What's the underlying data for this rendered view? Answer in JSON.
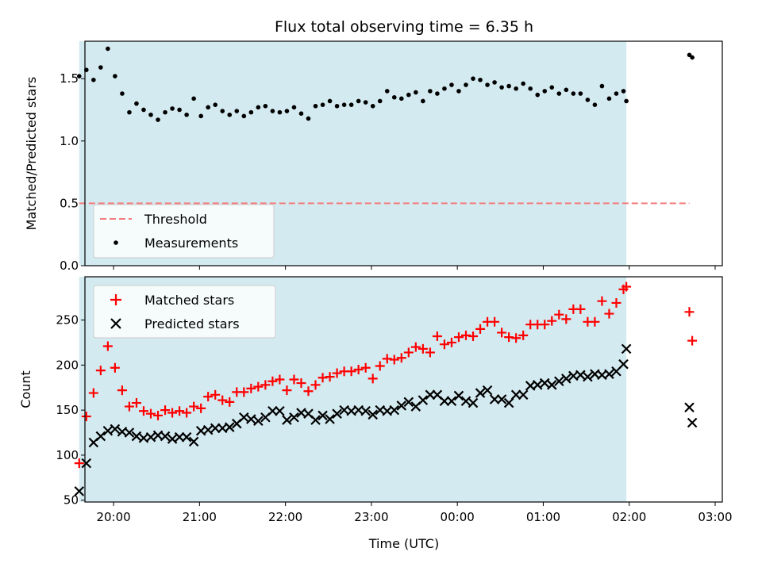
{
  "chart_data": [
    {
      "type": "scatter",
      "title": "Flux total observing time = 6.35 h",
      "xlabel": "",
      "ylabel": "Matched/Predicted stars",
      "x_range": [
        "19:40",
        "03:05"
      ],
      "ylim": [
        0,
        1.8
      ],
      "yticks": [
        0.0,
        0.5,
        1.0,
        1.5
      ],
      "ytick_labels": [
        "0.0",
        "0.5",
        "1.0",
        "1.5"
      ],
      "xticks": [
        "20:00",
        "21:00",
        "22:00",
        "23:00",
        "00:00",
        "01:00",
        "02:00",
        "03:00"
      ],
      "xtick_labels_visible": false,
      "shaded_interval": {
        "start": "19:36",
        "end": "01:58",
        "color": "#d3eaf0"
      },
      "threshold": {
        "name": "Threshold",
        "value": 0.5,
        "start": "19:36",
        "end": "02:42",
        "color": "#f47c7c",
        "style": "dashed"
      },
      "series": [
        {
          "name": "Measurements",
          "color": "#000000",
          "marker": "dot",
          "points": [
            [
              "19:36",
              1.52
            ],
            [
              "19:41",
              1.57
            ],
            [
              "19:46",
              1.49
            ],
            [
              "19:51",
              1.59
            ],
            [
              "19:56",
              1.74
            ],
            [
              "20:01",
              1.52
            ],
            [
              "20:06",
              1.38
            ],
            [
              "20:11",
              1.23
            ],
            [
              "20:16",
              1.3
            ],
            [
              "20:21",
              1.25
            ],
            [
              "20:26",
              1.21
            ],
            [
              "20:31",
              1.17
            ],
            [
              "20:36",
              1.23
            ],
            [
              "20:41",
              1.26
            ],
            [
              "20:46",
              1.25
            ],
            [
              "20:51",
              1.21
            ],
            [
              "20:56",
              1.34
            ],
            [
              "21:01",
              1.2
            ],
            [
              "21:06",
              1.27
            ],
            [
              "21:11",
              1.29
            ],
            [
              "21:16",
              1.24
            ],
            [
              "21:21",
              1.21
            ],
            [
              "21:26",
              1.24
            ],
            [
              "21:31",
              1.2
            ],
            [
              "21:36",
              1.23
            ],
            [
              "21:41",
              1.27
            ],
            [
              "21:46",
              1.28
            ],
            [
              "21:51",
              1.24
            ],
            [
              "21:56",
              1.23
            ],
            [
              "22:01",
              1.24
            ],
            [
              "22:06",
              1.27
            ],
            [
              "22:11",
              1.22
            ],
            [
              "22:16",
              1.18
            ],
            [
              "22:21",
              1.28
            ],
            [
              "22:26",
              1.29
            ],
            [
              "22:31",
              1.32
            ],
            [
              "22:36",
              1.28
            ],
            [
              "22:41",
              1.29
            ],
            [
              "22:46",
              1.29
            ],
            [
              "22:51",
              1.32
            ],
            [
              "22:56",
              1.31
            ],
            [
              "23:01",
              1.28
            ],
            [
              "23:06",
              1.32
            ],
            [
              "23:11",
              1.4
            ],
            [
              "23:16",
              1.35
            ],
            [
              "23:21",
              1.34
            ],
            [
              "23:26",
              1.37
            ],
            [
              "23:31",
              1.39
            ],
            [
              "23:36",
              1.32
            ],
            [
              "23:41",
              1.4
            ],
            [
              "23:46",
              1.38
            ],
            [
              "23:51",
              1.42
            ],
            [
              "23:56",
              1.45
            ],
            [
              "00:01",
              1.4
            ],
            [
              "00:06",
              1.45
            ],
            [
              "00:11",
              1.5
            ],
            [
              "00:16",
              1.49
            ],
            [
              "00:21",
              1.45
            ],
            [
              "00:26",
              1.47
            ],
            [
              "00:31",
              1.43
            ],
            [
              "00:36",
              1.44
            ],
            [
              "00:41",
              1.42
            ],
            [
              "00:46",
              1.46
            ],
            [
              "00:51",
              1.42
            ],
            [
              "00:56",
              1.37
            ],
            [
              "01:01",
              1.4
            ],
            [
              "01:06",
              1.43
            ],
            [
              "01:11",
              1.38
            ],
            [
              "01:16",
              1.41
            ],
            [
              "01:21",
              1.38
            ],
            [
              "01:26",
              1.38
            ],
            [
              "01:31",
              1.33
            ],
            [
              "01:36",
              1.29
            ],
            [
              "01:41",
              1.44
            ],
            [
              "01:46",
              1.34
            ],
            [
              "01:51",
              1.38
            ],
            [
              "01:56",
              1.4
            ],
            [
              "01:58",
              1.32
            ],
            [
              "02:42",
              1.69
            ],
            [
              "02:44",
              1.67
            ]
          ]
        }
      ],
      "legend": {
        "position": "lower-left",
        "entries": [
          "Threshold",
          "Measurements"
        ]
      }
    },
    {
      "type": "scatter",
      "title": "",
      "xlabel": "Time (UTC)",
      "ylabel": "Count",
      "x_range": [
        "19:40",
        "03:05"
      ],
      "ylim": [
        48,
        298
      ],
      "yticks": [
        50,
        100,
        150,
        200,
        250
      ],
      "ytick_labels": [
        "50",
        "100",
        "150",
        "200",
        "250"
      ],
      "xticks": [
        "20:00",
        "21:00",
        "22:00",
        "23:00",
        "00:00",
        "01:00",
        "02:00",
        "03:00"
      ],
      "xtick_labels": [
        "20:00",
        "21:00",
        "22:00",
        "23:00",
        "00:00",
        "01:00",
        "02:00",
        "03:00"
      ],
      "shaded_interval": {
        "start": "19:36",
        "end": "01:58",
        "color": "#d3eaf0"
      },
      "series": [
        {
          "name": "Matched stars",
          "color": "#ff0000",
          "marker": "plus",
          "points": [
            [
              "19:36",
              91
            ],
            [
              "19:41",
              143
            ],
            [
              "19:46",
              169
            ],
            [
              "19:51",
              194
            ],
            [
              "19:56",
              221
            ],
            [
              "20:01",
              197
            ],
            [
              "20:06",
              172
            ],
            [
              "20:11",
              154
            ],
            [
              "20:16",
              158
            ],
            [
              "20:21",
              149
            ],
            [
              "20:26",
              146
            ],
            [
              "20:31",
              144
            ],
            [
              "20:36",
              150
            ],
            [
              "20:41",
              147
            ],
            [
              "20:46",
              149
            ],
            [
              "20:51",
              147
            ],
            [
              "20:56",
              154
            ],
            [
              "21:01",
              152
            ],
            [
              "21:06",
              165
            ],
            [
              "21:11",
              167
            ],
            [
              "21:16",
              161
            ],
            [
              "21:21",
              159
            ],
            [
              "21:26",
              170
            ],
            [
              "21:31",
              170
            ],
            [
              "21:36",
              174
            ],
            [
              "21:41",
              176
            ],
            [
              "21:46",
              178
            ],
            [
              "21:51",
              182
            ],
            [
              "21:56",
              184
            ],
            [
              "22:01",
              172
            ],
            [
              "22:06",
              184
            ],
            [
              "22:11",
              180
            ],
            [
              "22:16",
              171
            ],
            [
              "22:21",
              178
            ],
            [
              "22:26",
              186
            ],
            [
              "22:31",
              187
            ],
            [
              "22:36",
              191
            ],
            [
              "22:41",
              193
            ],
            [
              "22:46",
              193
            ],
            [
              "22:51",
              195
            ],
            [
              "22:56",
              197
            ],
            [
              "23:01",
              185
            ],
            [
              "23:06",
              199
            ],
            [
              "23:11",
              207
            ],
            [
              "23:16",
              206
            ],
            [
              "23:21",
              208
            ],
            [
              "23:26",
              214
            ],
            [
              "23:31",
              220
            ],
            [
              "23:36",
              218
            ],
            [
              "23:41",
              214
            ],
            [
              "23:46",
              232
            ],
            [
              "23:51",
              223
            ],
            [
              "23:56",
              225
            ],
            [
              "00:01",
              231
            ],
            [
              "00:06",
              233
            ],
            [
              "00:11",
              232
            ],
            [
              "00:16",
              240
            ],
            [
              "00:21",
              248
            ],
            [
              "00:26",
              248
            ],
            [
              "00:31",
              236
            ],
            [
              "00:36",
              231
            ],
            [
              "00:41",
              230
            ],
            [
              "00:46",
              233
            ],
            [
              "00:51",
              245
            ],
            [
              "00:56",
              245
            ],
            [
              "01:01",
              245
            ],
            [
              "01:06",
              249
            ],
            [
              "01:11",
              256
            ],
            [
              "01:16",
              251
            ],
            [
              "01:21",
              262
            ],
            [
              "01:26",
              262
            ],
            [
              "01:31",
              248
            ],
            [
              "01:36",
              248
            ],
            [
              "01:41",
              271
            ],
            [
              "01:46",
              257
            ],
            [
              "01:51",
              269
            ],
            [
              "01:56",
              284
            ],
            [
              "01:58",
              287
            ],
            [
              "02:42",
              259
            ],
            [
              "02:44",
              227
            ]
          ]
        },
        {
          "name": "Predicted stars",
          "color": "#000000",
          "marker": "x",
          "points": [
            [
              "19:36",
              60
            ],
            [
              "19:41",
              91
            ],
            [
              "19:46",
              114
            ],
            [
              "19:51",
              121
            ],
            [
              "19:56",
              127
            ],
            [
              "20:01",
              129
            ],
            [
              "20:06",
              126
            ],
            [
              "20:11",
              125
            ],
            [
              "20:16",
              121
            ],
            [
              "20:21",
              119
            ],
            [
              "20:26",
              120
            ],
            [
              "20:31",
              122
            ],
            [
              "20:36",
              121
            ],
            [
              "20:41",
              118
            ],
            [
              "20:46",
              120
            ],
            [
              "20:51",
              120
            ],
            [
              "20:56",
              115
            ],
            [
              "21:01",
              127
            ],
            [
              "21:06",
              128
            ],
            [
              "21:11",
              130
            ],
            [
              "21:16",
              130
            ],
            [
              "21:21",
              131
            ],
            [
              "21:26",
              135
            ],
            [
              "21:31",
              142
            ],
            [
              "21:36",
              140
            ],
            [
              "21:41",
              138
            ],
            [
              "21:46",
              142
            ],
            [
              "21:51",
              149
            ],
            [
              "21:56",
              149
            ],
            [
              "22:01",
              139
            ],
            [
              "22:06",
              142
            ],
            [
              "22:11",
              147
            ],
            [
              "22:16",
              146
            ],
            [
              "22:21",
              139
            ],
            [
              "22:26",
              144
            ],
            [
              "22:31",
              140
            ],
            [
              "22:36",
              146
            ],
            [
              "22:41",
              150
            ],
            [
              "22:46",
              149
            ],
            [
              "22:51",
              150
            ],
            [
              "22:56",
              149
            ],
            [
              "23:01",
              145
            ],
            [
              "23:06",
              150
            ],
            [
              "23:11",
              149
            ],
            [
              "23:16",
              150
            ],
            [
              "23:21",
              155
            ],
            [
              "23:26",
              159
            ],
            [
              "23:31",
              154
            ],
            [
              "23:36",
              161
            ],
            [
              "23:41",
              167
            ],
            [
              "23:46",
              167
            ],
            [
              "23:51",
              160
            ],
            [
              "23:56",
              160
            ],
            [
              "00:01",
              166
            ],
            [
              "00:06",
              160
            ],
            [
              "00:11",
              158
            ],
            [
              "00:16",
              169
            ],
            [
              "00:21",
              172
            ],
            [
              "00:26",
              162
            ],
            [
              "00:31",
              162
            ],
            [
              "00:36",
              158
            ],
            [
              "00:41",
              167
            ],
            [
              "00:46",
              167
            ],
            [
              "00:51",
              177
            ],
            [
              "00:56",
              178
            ],
            [
              "01:01",
              180
            ],
            [
              "01:06",
              178
            ],
            [
              "01:11",
              182
            ],
            [
              "01:16",
              185
            ],
            [
              "01:21",
              188
            ],
            [
              "01:26",
              189
            ],
            [
              "01:31",
              187
            ],
            [
              "01:36",
              190
            ],
            [
              "01:41",
              189
            ],
            [
              "01:46",
              190
            ],
            [
              "01:51",
              193
            ],
            [
              "01:56",
              201
            ],
            [
              "01:58",
              218
            ],
            [
              "02:42",
              153
            ],
            [
              "02:44",
              136
            ]
          ]
        }
      ],
      "legend": {
        "position": "upper-left",
        "entries": [
          "Matched stars",
          "Predicted stars"
        ]
      }
    }
  ]
}
